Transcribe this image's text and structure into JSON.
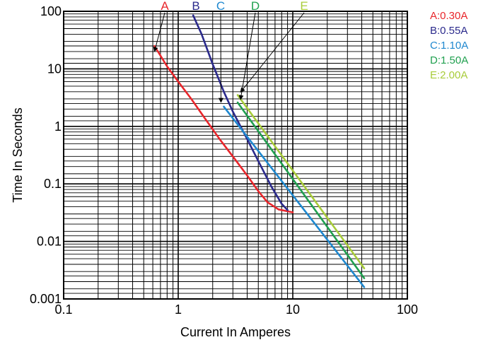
{
  "chart_data": {
    "type": "line",
    "xlabel": "Current In Amperes",
    "ylabel": "Time In Seconds",
    "x_scale": "log",
    "y_scale": "log",
    "xlim": [
      0.1,
      100
    ],
    "ylim": [
      0.001,
      100
    ],
    "grid": true,
    "legend_position": "right",
    "x_tick_labels": [
      "0.1",
      "1",
      "10",
      "100"
    ],
    "y_tick_labels": [
      "0.001",
      "0.01",
      "0.1",
      "1",
      "10",
      "100"
    ],
    "series": [
      {
        "name": "A:0.30A",
        "callout": "A",
        "color": "#e8262b",
        "x": [
          0.62,
          0.8,
          1.0,
          1.3,
          1.7,
          2.3,
          3.0,
          4.0,
          5.0,
          6.0,
          7.5,
          10.0
        ],
        "y": [
          25,
          11,
          6,
          3,
          1.4,
          0.6,
          0.3,
          0.14,
          0.075,
          0.048,
          0.036,
          0.032
        ]
      },
      {
        "name": "B:0.55A",
        "callout": "B",
        "color": "#2b2a8c",
        "x": [
          1.35,
          1.6,
          2.0,
          2.5,
          3.0,
          4.0,
          5.0,
          6.5,
          8.0,
          9.0
        ],
        "y": [
          85,
          40,
          12,
          4,
          1.8,
          0.6,
          0.25,
          0.09,
          0.045,
          0.035
        ]
      },
      {
        "name": "C:1.10A",
        "callout": "C",
        "color": "#1f88cf",
        "x": [
          2.5,
          42.0
        ],
        "y": [
          2.2,
          0.0016
        ]
      },
      {
        "name": "D:1.50A",
        "callout": "D",
        "color": "#20a04f",
        "x": [
          3.3,
          42.0
        ],
        "y": [
          2.6,
          0.0023
        ]
      },
      {
        "name": "E:2.00A",
        "callout": "E",
        "color": "#a8cc3a",
        "x": [
          3.3,
          42.0
        ],
        "y": [
          3.5,
          0.0034
        ]
      }
    ]
  }
}
